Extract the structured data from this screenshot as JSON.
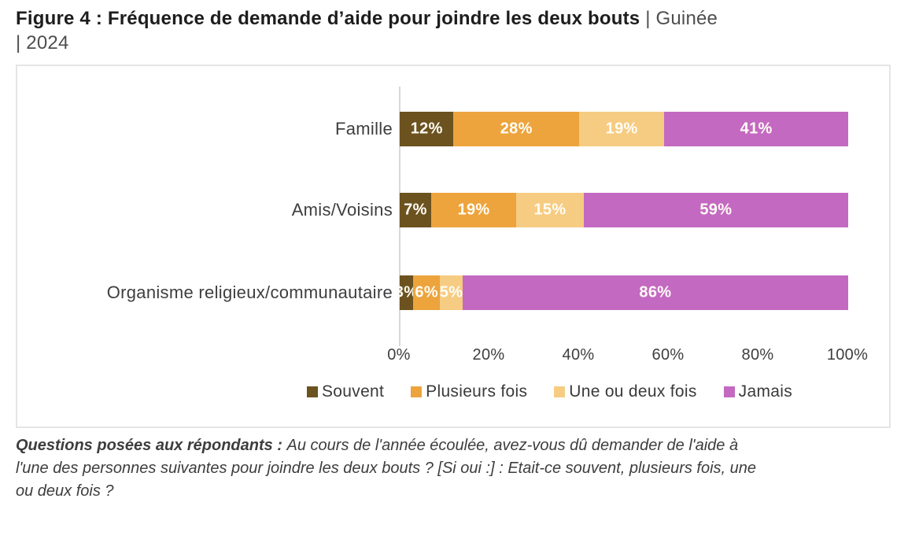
{
  "title": {
    "bold": "Figure 4 : Fréquence de demande d’aide pour joindre les deux bouts",
    "rest": " | Guinée",
    "line2": "| 2024"
  },
  "chart_data": {
    "type": "bar",
    "subtype": "horizontal-stacked-100pct",
    "categories": [
      "Famille",
      "Amis/Voisins",
      "Organisme religieux/communautaire"
    ],
    "series": [
      {
        "name": "Souvent",
        "color": "#6B521F",
        "values": [
          12,
          7,
          3
        ]
      },
      {
        "name": "Plusieurs fois",
        "color": "#EDA43D",
        "values": [
          28,
          19,
          6
        ]
      },
      {
        "name": "Une ou deux fois",
        "color": "#F6CC82",
        "values": [
          19,
          15,
          5
        ]
      },
      {
        "name": "Jamais",
        "color": "#C469C1",
        "values": [
          41,
          59,
          86
        ]
      }
    ],
    "data_label_format": "{value}%",
    "x_axis": {
      "min": 0,
      "max": 100,
      "tick_values": [
        0,
        20,
        40,
        60,
        80,
        100
      ],
      "tick_labels": [
        "0%",
        "20%",
        "40%",
        "60%",
        "80%",
        "100%"
      ]
    },
    "legend_position": "bottom",
    "grid": false
  },
  "footnote": {
    "lead": "Questions posées aux répondants : ",
    "line1_rest": "Au cours de l'année écoulée, avez-vous dû demander de l'aide à",
    "line2": "l'une des personnes suivantes pour joindre les deux bouts ? [Si oui :] : Etait-ce souvent, plusieurs fois, une",
    "line3": "ou deux fois ?"
  }
}
